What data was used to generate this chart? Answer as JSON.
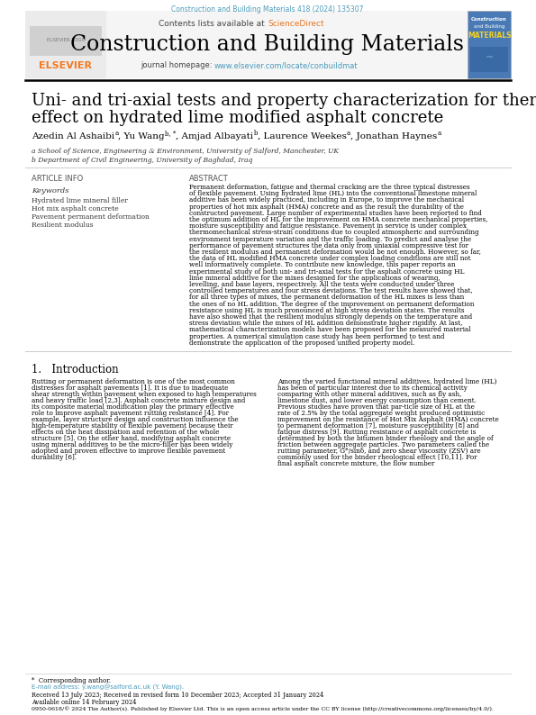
{
  "page_bg": "#ffffff",
  "top_journal_ref": "Construction and Building Materials 418 (2024) 135307",
  "top_journal_ref_color": "#4a9aba",
  "header_bg": "#f0f0f0",
  "contents_text": "Contents lists available at ",
  "sciencedirect_text": "ScienceDirect",
  "sciencedirect_color": "#e87722",
  "journal_title": "Construction and Building Materials",
  "journal_title_size": 18,
  "journal_homepage_text": "journal homepage: ",
  "journal_homepage_url": "www.elsevier.com/locate/conbuildmat",
  "journal_homepage_color": "#4a9aba",
  "elsevier_color": "#f47920",
  "paper_title_line1": "Uni- and tri-axial tests and property characterization for thermomechanical",
  "paper_title_line2": "effect on hydrated lime modified asphalt concrete",
  "paper_title_size": 13,
  "affiliation_a": "a School of Science, Engineering & Environment, University of Salford, Manchester, UK",
  "affiliation_b": "b Department of Civil Engineering, University of Baghdad, Iraq",
  "article_info_label": "ARTICLE INFO",
  "abstract_label": "ABSTRACT",
  "keywords_label": "Keywords",
  "keywords": [
    "Hydrated lime mineral filler",
    "Hot mix asphalt concrete",
    "Pavement permanent deformation",
    "Resilient modulus"
  ],
  "abstract_text": "Permanent deformation, fatigue and thermal cracking are the three typical distresses of flexible pavement. Using hydrated lime (HL) into the conventional limestone mineral additive has been widely practiced, including in Europe, to improve the mechanical properties of hot mix asphalt (HMA) concrete and as the result the durability of the constructed pavement. Large number of experimental studies have been reported to find the optimum addition of HL for the improvement on HMA concrete mechanical properties, moisture susceptibility and fatigue resistance. Pavement in service is under complex thermomechanical stress-strain conditions due to coupled atmospheric and surrounding environment temperature variation and the traffic loading. To predict and analyse the performance of pavement structures the data only from uniaxial compressive test for the resilient modulus and permanent deformation would be not enough. However, so far, the data of HL modified HMA concrete under complex loading conditions are still not well informatively complete. To contribute new knowledge, this paper reports an experimental study of both uni- and tri-axial tests for the asphalt concrete using HL lime mineral additive for the mixes designed for the applications of wearing, levelling, and base layers, respectively. All the tests were conducted under three controlled temperatures and four stress deviations. The test results have showed that, for all three types of mixes, the permanent deformation of the HL mixes is less than the ones of no HL addition. The degree of the improvement on permanent deformation resistance using HL is much pronounced at high stress deviation states. The results have also showed that the resilient modulus strongly depends on the temperature and stress deviation while the mixes of HL addition demonstrate higher rigidity. At last, mathematical characterization models have been proposed for the measured material properties. A numerical simulation case study has been performed to test and demonstrate the application of the proposed unified property model.",
  "intro_heading": "1.   Introduction",
  "intro_text_col1": "Rutting or permanent deformation is one of the most common distresses for asphalt pavements [1]. It is due to inadequate shear strength within pavement when exposed to high temperatures and heavy traffic load [2,3]. Asphalt concrete mixture design and its composite material modification play the primary effective role to improve asphalt pavement rutting resistance [4]. For example, layer structure design and construction influence the high-temperature stability of flexible pavement because their effects on the heat dissipation and retention of the whole structure [5]. On the other hand, modifying asphalt concrete using mineral additives to be the micro-filler has been widely adopted and proven effective to improve flexible pavement durability [6].",
  "intro_text_col2": "Among the varied functional mineral additives, hydrated lime (HL) has been of particular interest due to its chemical activity comparing with other mineral additives, such as fly ash, limestone dust, and lower energy consumption than cement. Previous studies have proven that par-ticle size of HL at the rate of 2.5% by the total aggregate weight produced optimistic improvement on the resistance of Hot Mix Asphalt (HMA) concrete to permanent deformation [7], moisture susceptibility [8] and fatigue distress [9]. Rutting resistance of asphalt concrete is determined by both the bitumen binder rheology and the angle of friction between aggregate particles. Two parameters called the rutting parameter, G*/sinδ, and zero shear viscosity (ZSV) are commonly used for the binder rheological effect [10,11]. For final asphalt concrete mixture, the flow number",
  "received_text": "Received 13 July 2023; Received in revised form 10 December 2023; Accepted 31 January 2024",
  "available_text": "Available online 14 February 2024",
  "issn_text": "0950-0618/© 2024 The Author(s). Published by Elsevier Ltd. This is an open access article under the CC BY license (http://creativecommons.org/licenses/by/4.0/).",
  "separator_color": "#000000",
  "light_separator_color": "#cccccc",
  "text_color": "#000000",
  "gray_text": "#555555"
}
